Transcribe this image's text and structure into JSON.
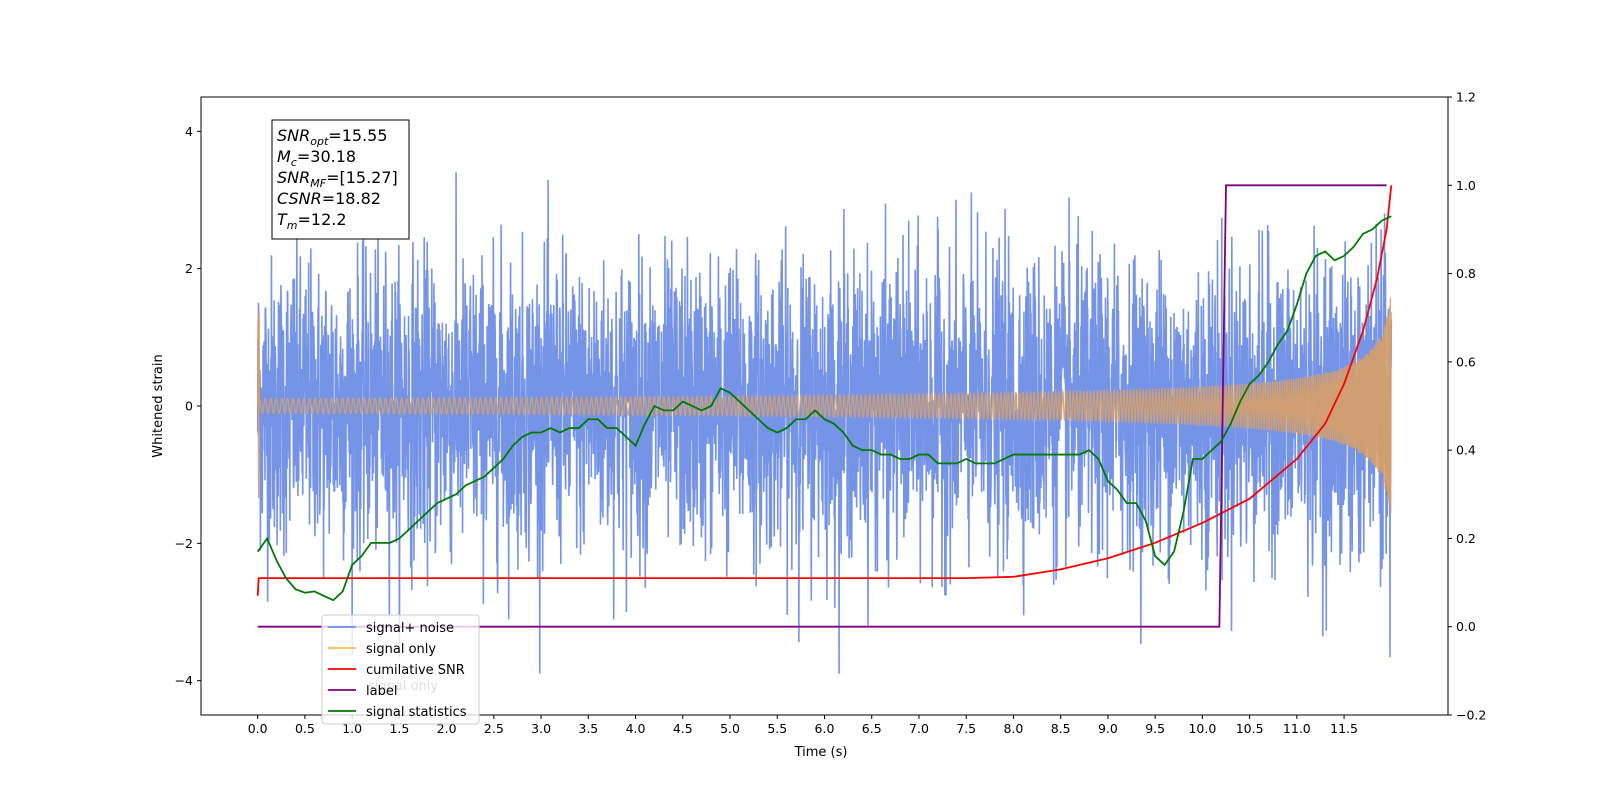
{
  "chart_data": {
    "type": "line",
    "xlabel": "Time (s)",
    "ylabel": "Whitened strain",
    "xlim": [
      -0.6,
      12.6
    ],
    "ylim": [
      -4.5,
      4.5
    ],
    "y2lim": [
      -0.2,
      1.2
    ],
    "x_ticks": [
      "0.0",
      "0.5",
      "1.0",
      "1.5",
      "2.0",
      "2.5",
      "3.0",
      "3.5",
      "4.0",
      "4.5",
      "5.0",
      "5.5",
      "6.0",
      "6.5",
      "7.0",
      "7.5",
      "8.0",
      "8.5",
      "9.0",
      "9.5",
      "10.0",
      "10.5",
      "11.0",
      "11.5"
    ],
    "y_ticks": [
      4,
      2,
      0,
      -2,
      -4
    ],
    "y_tick_labels": [
      "4",
      "2",
      "0",
      "−2",
      "−4"
    ],
    "y2_ticks": [
      1.2,
      1.0,
      0.8,
      0.6,
      0.4,
      0.2,
      0.0,
      -0.2
    ],
    "y2_tick_labels": [
      "1.2",
      "1.0",
      "0.8",
      "0.6",
      "0.4",
      "0.2",
      "0.0",
      "−0.2"
    ],
    "annotation": [
      {
        "base": "SNR",
        "sub": "opt",
        "value": "=15.55"
      },
      {
        "base": "M",
        "sub": "c",
        "value": "=30.18"
      },
      {
        "base": "SNR",
        "sub": "MF",
        "value": "=[15.27]"
      },
      {
        "base": "CSNR",
        "sub": "",
        "value": "=18.82"
      },
      {
        "base": "T",
        "sub": "m",
        "value": "=12.2"
      }
    ],
    "legend": {
      "placement": "lower-left",
      "entries": [
        {
          "label": "signal+ noise",
          "color": "#6f8ee6"
        },
        {
          "label": "signal only",
          "color": "#ffb84d"
        },
        {
          "label": "cumilative SNR",
          "color": "#ff0000"
        },
        {
          "label": "label",
          "color": "#800080"
        },
        {
          "label": "signal statistics",
          "color": "#007a00"
        }
      ],
      "hidden_text": "signal only"
    },
    "series": [
      {
        "name": "signal+ noise",
        "axis": "left",
        "color": "#6f8ee6",
        "t_start": 0.0,
        "t_end": 12.0,
        "noise_std": 1.0,
        "envelope_max": 3.9
      },
      {
        "name": "signal only",
        "axis": "left",
        "color": "#d9a066",
        "t_start": 0.0,
        "t_end": 12.0,
        "amplitude_start": 0.02,
        "amplitude_end": 1.7
      },
      {
        "name": "cumilative SNR",
        "axis": "right",
        "color": "#ff0000",
        "x": [
          0.0,
          0.01,
          7.5,
          8.0,
          8.5,
          9.0,
          9.5,
          10.0,
          10.5,
          11.0,
          11.3,
          11.5,
          11.7,
          11.85,
          11.95,
          12.0
        ],
        "y": [
          0.07,
          0.11,
          0.11,
          0.113,
          0.13,
          0.155,
          0.19,
          0.235,
          0.29,
          0.38,
          0.46,
          0.55,
          0.67,
          0.79,
          0.9,
          1.0
        ]
      },
      {
        "name": "label",
        "axis": "right",
        "color": "#800080",
        "x": [
          0.0,
          10.18,
          10.25,
          11.95
        ],
        "y": [
          0.0,
          0.0,
          1.0,
          1.0
        ]
      },
      {
        "name": "signal statistics",
        "axis": "right",
        "color": "#007a00",
        "x": [
          0.0,
          0.1,
          0.2,
          0.3,
          0.4,
          0.5,
          0.6,
          0.7,
          0.8,
          0.9,
          1.0,
          1.1,
          1.2,
          1.3,
          1.4,
          1.5,
          1.6,
          1.7,
          1.8,
          1.9,
          2.0,
          2.1,
          2.2,
          2.3,
          2.4,
          2.5,
          2.6,
          2.7,
          2.8,
          2.9,
          3.0,
          3.1,
          3.2,
          3.3,
          3.4,
          3.5,
          3.6,
          3.7,
          3.8,
          3.9,
          4.0,
          4.1,
          4.2,
          4.3,
          4.4,
          4.5,
          4.6,
          4.7,
          4.8,
          4.9,
          5.0,
          5.1,
          5.2,
          5.3,
          5.4,
          5.5,
          5.6,
          5.7,
          5.8,
          5.9,
          6.0,
          6.1,
          6.2,
          6.3,
          6.4,
          6.5,
          6.6,
          6.7,
          6.8,
          6.9,
          7.0,
          7.1,
          7.2,
          7.3,
          7.4,
          7.5,
          7.6,
          7.7,
          7.8,
          7.9,
          8.0,
          8.1,
          8.2,
          8.3,
          8.4,
          8.5,
          8.6,
          8.7,
          8.8,
          8.9,
          9.0,
          9.1,
          9.2,
          9.3,
          9.4,
          9.5,
          9.6,
          9.7,
          9.8,
          9.9,
          10.0,
          10.1,
          10.2,
          10.3,
          10.4,
          10.5,
          10.6,
          10.7,
          10.8,
          10.9,
          11.0,
          11.1,
          11.2,
          11.3,
          11.4,
          11.5,
          11.6,
          11.7,
          11.8,
          11.9,
          12.0
        ],
        "y": [
          0.17,
          0.2,
          0.15,
          0.11,
          0.085,
          0.077,
          0.08,
          0.07,
          0.06,
          0.08,
          0.14,
          0.16,
          0.19,
          0.19,
          0.19,
          0.2,
          0.22,
          0.24,
          0.26,
          0.28,
          0.29,
          0.3,
          0.32,
          0.33,
          0.34,
          0.36,
          0.38,
          0.41,
          0.43,
          0.44,
          0.44,
          0.45,
          0.44,
          0.45,
          0.45,
          0.47,
          0.47,
          0.45,
          0.45,
          0.43,
          0.41,
          0.46,
          0.5,
          0.49,
          0.49,
          0.51,
          0.5,
          0.49,
          0.5,
          0.54,
          0.53,
          0.51,
          0.49,
          0.47,
          0.45,
          0.44,
          0.45,
          0.47,
          0.47,
          0.49,
          0.47,
          0.46,
          0.44,
          0.41,
          0.4,
          0.4,
          0.39,
          0.39,
          0.38,
          0.38,
          0.39,
          0.39,
          0.37,
          0.37,
          0.37,
          0.38,
          0.37,
          0.37,
          0.37,
          0.38,
          0.39,
          0.39,
          0.39,
          0.39,
          0.39,
          0.39,
          0.39,
          0.39,
          0.4,
          0.38,
          0.33,
          0.31,
          0.28,
          0.28,
          0.24,
          0.16,
          0.14,
          0.17,
          0.26,
          0.38,
          0.38,
          0.4,
          0.42,
          0.46,
          0.51,
          0.55,
          0.57,
          0.6,
          0.64,
          0.67,
          0.73,
          0.8,
          0.84,
          0.85,
          0.83,
          0.84,
          0.86,
          0.89,
          0.9,
          0.92,
          0.93
        ]
      }
    ]
  }
}
